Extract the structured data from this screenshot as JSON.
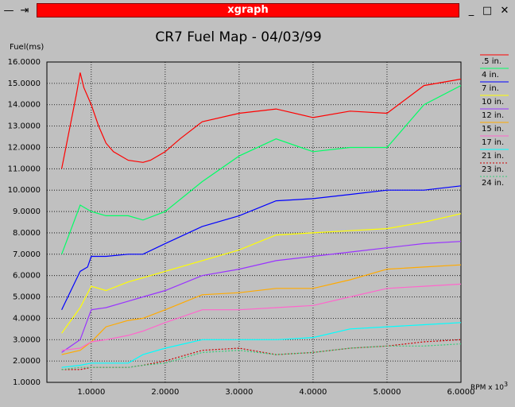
{
  "window": {
    "title": "xgraph",
    "menu_icon": "—",
    "pin_icon": "⇥",
    "minimize_icon": "_",
    "maximize_icon": "□",
    "close_icon": "✕"
  },
  "chart_data": {
    "type": "line",
    "title": "CR7 Fuel Map - 04/03/99",
    "ylabel": "Fuel(ms)",
    "xlabel": "RPM x 10",
    "xlabel_exponent": "3",
    "xlim": [
      0.4,
      6.0
    ],
    "ylim": [
      1.0,
      16.0
    ],
    "xticks": [
      1.0,
      2.0,
      3.0,
      4.0,
      5.0,
      6.0
    ],
    "xtick_labels": [
      "1.0000",
      "2.0000",
      "3.0000",
      "4.0000",
      "5.0000",
      "6.0000"
    ],
    "yticks": [
      1,
      2,
      3,
      4,
      5,
      6,
      7,
      8,
      9,
      10,
      11,
      12,
      13,
      14,
      15,
      16
    ],
    "ytick_labels": [
      "1.0000",
      "2.0000",
      "3.0000",
      "4.0000",
      "5.0000",
      "6.0000",
      "7.0000",
      "8.0000",
      "9.0000",
      "10.0000",
      "11.0000",
      "12.0000",
      "13.0000",
      "14.0000",
      "15.0000",
      "16.0000"
    ],
    "grid": true,
    "legend_position": "right",
    "series": [
      {
        "name": ".5 in.",
        "color": "#ff0000",
        "dash": "",
        "x": [
          0.6,
          0.8,
          0.85,
          0.9,
          1.0,
          1.1,
          1.2,
          1.3,
          1.5,
          1.7,
          1.8,
          2.0,
          2.2,
          2.5,
          3.0,
          3.5,
          4.0,
          4.5,
          5.0,
          5.5,
          6.0
        ],
        "y": [
          11.0,
          14.5,
          15.5,
          14.8,
          14.0,
          13.0,
          12.2,
          11.8,
          11.4,
          11.3,
          11.4,
          11.8,
          12.4,
          13.2,
          13.6,
          13.8,
          13.4,
          13.7,
          13.6,
          14.9,
          15.2
        ]
      },
      {
        "name": "4 in.",
        "color": "#00ff66",
        "dash": "",
        "x": [
          0.6,
          0.85,
          1.0,
          1.2,
          1.5,
          1.7,
          2.0,
          2.5,
          3.0,
          3.5,
          4.0,
          4.5,
          5.0,
          5.5,
          6.0
        ],
        "y": [
          7.0,
          9.3,
          9.0,
          8.8,
          8.8,
          8.6,
          9.0,
          10.4,
          11.6,
          12.4,
          11.8,
          12.0,
          12.0,
          14.0,
          14.9
        ]
      },
      {
        "name": "7 in.",
        "color": "#0000ff",
        "dash": "",
        "x": [
          0.6,
          0.85,
          0.95,
          1.0,
          1.2,
          1.5,
          1.7,
          2.0,
          2.5,
          3.0,
          3.5,
          4.0,
          4.5,
          5.0,
          5.5,
          6.0
        ],
        "y": [
          4.4,
          6.2,
          6.4,
          6.9,
          6.9,
          7.0,
          7.0,
          7.5,
          8.3,
          8.8,
          9.5,
          9.6,
          9.8,
          10.0,
          10.0,
          10.2
        ]
      },
      {
        "name": "10 in.",
        "color": "#ffff00",
        "dash": "",
        "x": [
          0.6,
          0.85,
          1.0,
          1.2,
          1.5,
          1.7,
          2.0,
          2.5,
          3.0,
          3.5,
          4.0,
          4.5,
          5.0,
          5.5,
          6.0
        ],
        "y": [
          3.3,
          4.5,
          5.5,
          5.3,
          5.7,
          5.9,
          6.2,
          6.7,
          7.2,
          7.9,
          8.0,
          8.1,
          8.2,
          8.5,
          8.9
        ]
      },
      {
        "name": "12 in.",
        "color": "#9933ff",
        "dash": "",
        "x": [
          0.6,
          0.85,
          1.0,
          1.2,
          1.5,
          1.7,
          2.0,
          2.5,
          3.0,
          3.5,
          4.0,
          4.5,
          5.0,
          5.5,
          6.0
        ],
        "y": [
          2.4,
          3.0,
          4.4,
          4.5,
          4.8,
          5.0,
          5.3,
          6.0,
          6.3,
          6.7,
          6.9,
          7.1,
          7.3,
          7.5,
          7.6
        ]
      },
      {
        "name": "15 in.",
        "color": "#ffaa00",
        "dash": "",
        "x": [
          0.6,
          0.85,
          1.0,
          1.2,
          1.5,
          1.7,
          2.0,
          2.5,
          3.0,
          3.5,
          4.0,
          4.5,
          5.0,
          5.5,
          6.0
        ],
        "y": [
          2.3,
          2.5,
          2.9,
          3.6,
          3.9,
          4.0,
          4.4,
          5.1,
          5.2,
          5.4,
          5.4,
          5.8,
          6.3,
          6.4,
          6.5
        ]
      },
      {
        "name": "17 in.",
        "color": "#ff66cc",
        "dash": "",
        "x": [
          0.6,
          0.85,
          1.0,
          1.2,
          1.5,
          1.7,
          2.0,
          2.5,
          3.0,
          3.5,
          4.0,
          4.5,
          5.0,
          5.5,
          6.0
        ],
        "y": [
          2.5,
          2.6,
          2.9,
          3.0,
          3.2,
          3.4,
          3.8,
          4.4,
          4.4,
          4.5,
          4.6,
          5.0,
          5.4,
          5.5,
          5.6
        ]
      },
      {
        "name": "21 in.",
        "color": "#00ffff",
        "dash": "",
        "x": [
          0.6,
          0.85,
          1.0,
          1.2,
          1.5,
          1.7,
          2.0,
          2.5,
          3.0,
          3.5,
          4.0,
          4.5,
          5.0,
          5.5,
          6.0
        ],
        "y": [
          1.7,
          1.8,
          1.9,
          1.9,
          1.9,
          2.3,
          2.6,
          3.0,
          3.0,
          3.0,
          3.1,
          3.5,
          3.6,
          3.7,
          3.8
        ]
      },
      {
        "name": "23 in.",
        "color": "#cc0000",
        "dash": "2,2",
        "x": [
          0.6,
          0.85,
          1.0,
          1.2,
          1.5,
          1.7,
          2.0,
          2.5,
          3.0,
          3.5,
          4.0,
          4.5,
          5.0,
          5.5,
          6.0
        ],
        "y": [
          1.6,
          1.6,
          1.7,
          1.7,
          1.7,
          1.8,
          2.0,
          2.5,
          2.6,
          2.3,
          2.4,
          2.6,
          2.7,
          2.9,
          3.0
        ]
      },
      {
        "name": "24 in.",
        "color": "#33cc77",
        "dash": "2,2",
        "x": [
          0.6,
          0.85,
          1.0,
          1.2,
          1.5,
          1.7,
          2.0,
          2.5,
          3.0,
          3.5,
          4.0,
          4.5,
          5.0,
          5.5,
          6.0
        ],
        "y": [
          1.6,
          1.7,
          1.7,
          1.7,
          1.7,
          1.8,
          1.9,
          2.4,
          2.5,
          2.3,
          2.4,
          2.6,
          2.7,
          2.7,
          2.8
        ]
      }
    ]
  }
}
